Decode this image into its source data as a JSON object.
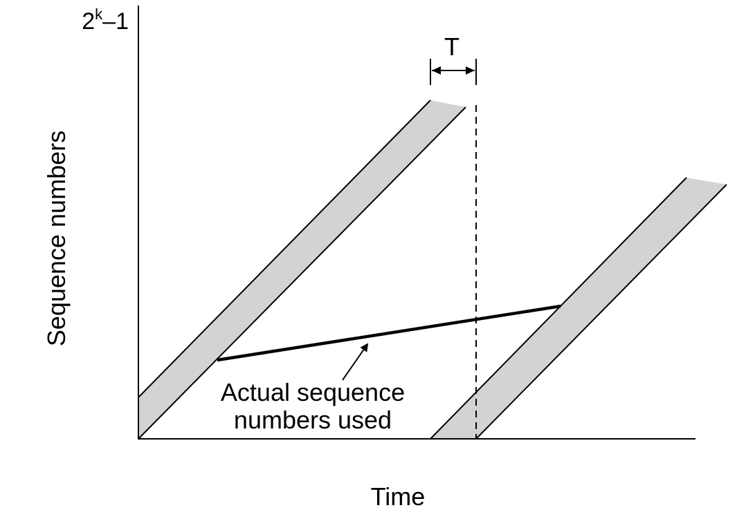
{
  "diagram": {
    "y_axis_label": "Sequence numbers",
    "x_axis_label": "Time",
    "y_max_label": {
      "base": "2",
      "exponent": "k",
      "suffix": "–1"
    },
    "interval_label": "T",
    "annotation": {
      "line1": "Actual sequence",
      "line2": "numbers used"
    },
    "colors": {
      "band_fill": "#d3d3d3",
      "stroke": "#000000",
      "background": "#ffffff"
    }
  }
}
